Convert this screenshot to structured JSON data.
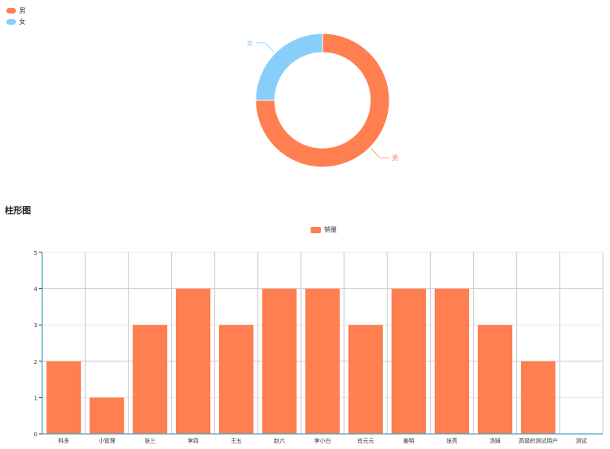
{
  "donut_chart": {
    "type": "pie",
    "variant": "donut",
    "legend": [
      {
        "label": "男",
        "color": "#ff7f50"
      },
      {
        "label": "女",
        "color": "#87cefa"
      }
    ],
    "slices": [
      {
        "label": "男",
        "value": 75,
        "color": "#ff7f50"
      },
      {
        "label": "女",
        "value": 25,
        "color": "#87cefa"
      }
    ]
  },
  "chart_data": {
    "type": "bar",
    "title": "柱形图",
    "series": [
      {
        "name": "销量",
        "color": "#ff7f50",
        "values": [
          2,
          1,
          3,
          4,
          3,
          4,
          4,
          3,
          4,
          4,
          3,
          2,
          0
        ]
      }
    ],
    "categories": [
      "科多",
      "小管理",
      "张三",
      "李四",
      "王五",
      "赵六",
      "李小白",
      "肖元元",
      "姜明",
      "张亮",
      "汤姆",
      "高级的测试用户",
      "测试"
    ],
    "ylim": [
      0,
      5
    ],
    "yticks": [
      0,
      1,
      2,
      3,
      4,
      5
    ],
    "grid": true,
    "legend_position": "top-center"
  }
}
